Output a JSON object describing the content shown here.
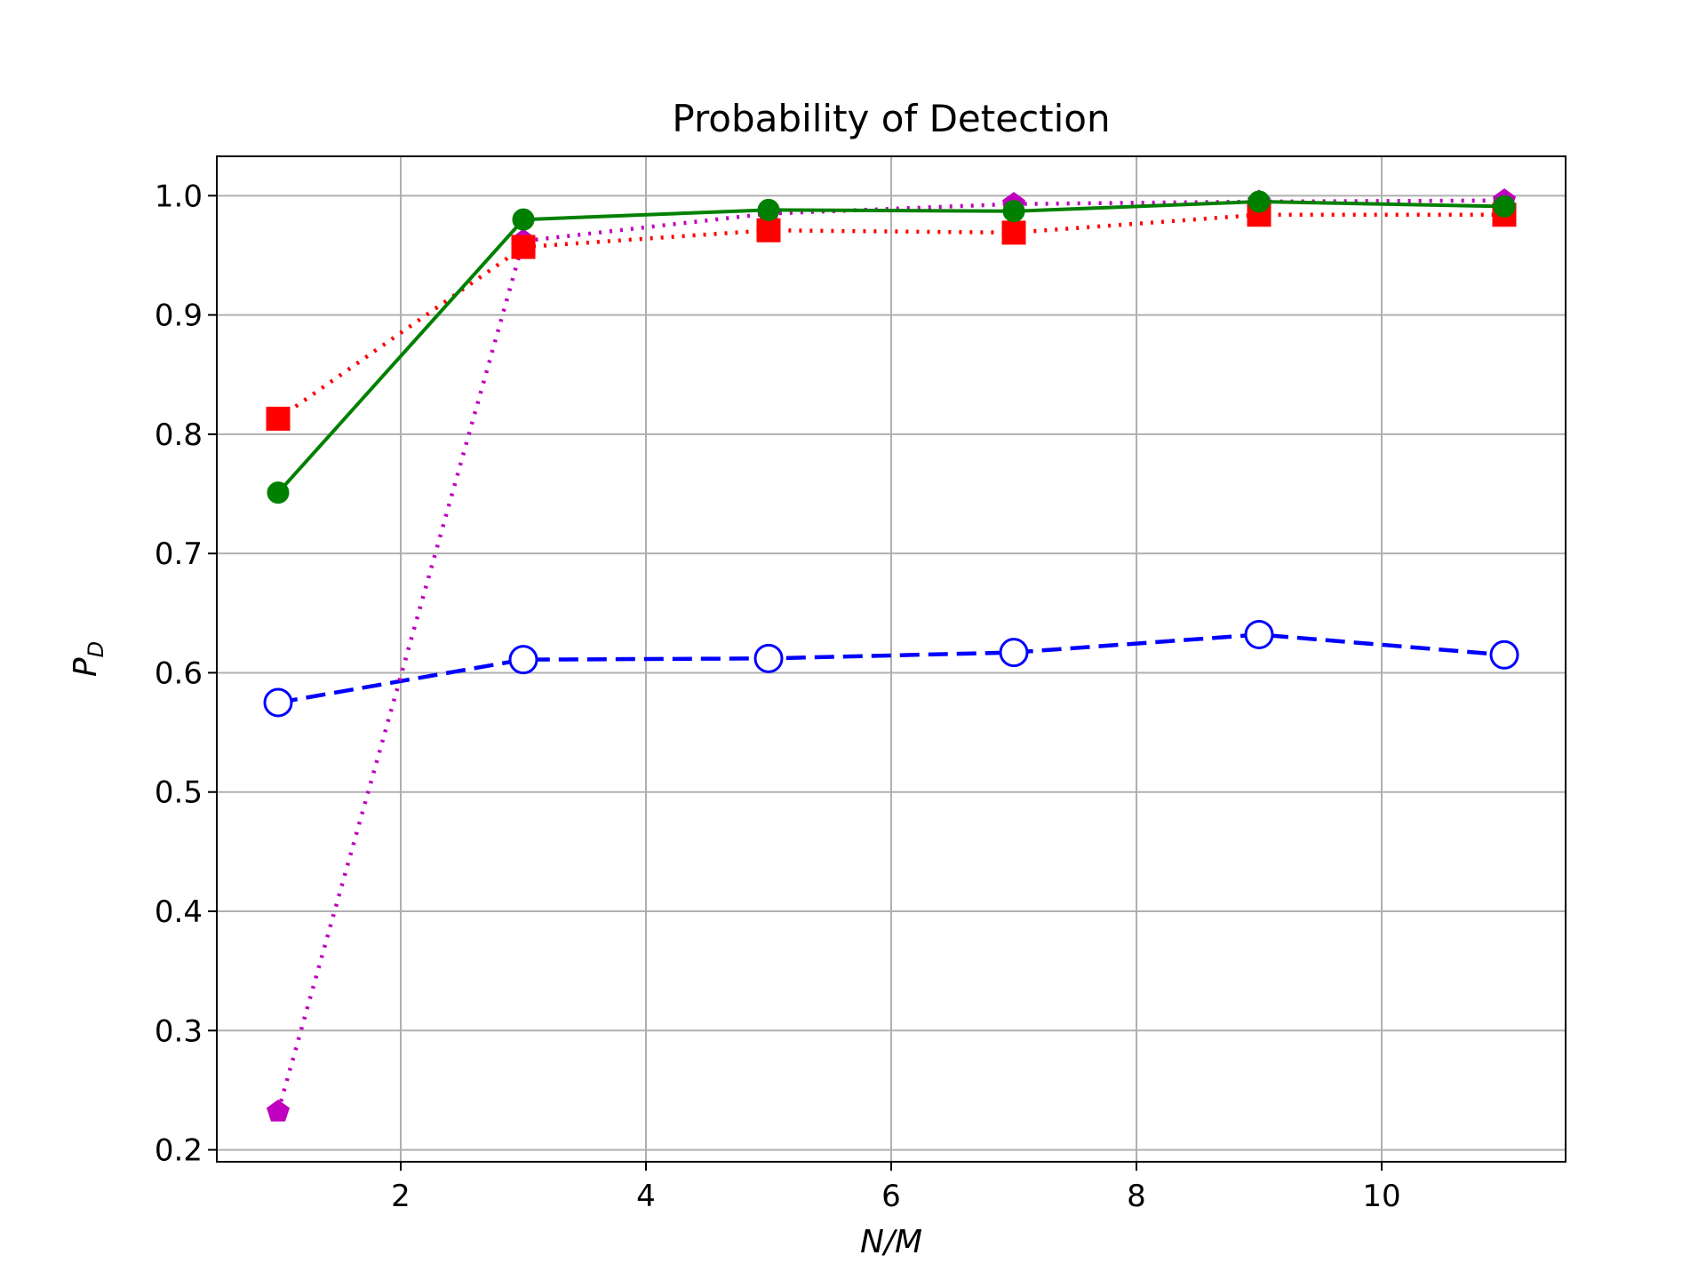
{
  "chart_data": {
    "type": "line",
    "title": "Probability of Detection",
    "xlabel": "N/M",
    "ylabel": "P",
    "ylabel_subscript": "D",
    "xlim": [
      0.5,
      11.5
    ],
    "ylim": [
      0.19,
      1.033
    ],
    "grid": true,
    "xticks": [
      2,
      4,
      6,
      8,
      10
    ],
    "xtick_labels": [
      "2",
      "4",
      "6",
      "8",
      "10"
    ],
    "yticks": [
      0.2,
      0.3,
      0.4,
      0.5,
      0.6,
      0.7,
      0.8,
      0.9,
      1.0
    ],
    "ytick_labels": [
      "0.2",
      "0.3",
      "0.4",
      "0.5",
      "0.6",
      "0.7",
      "0.8",
      "0.9",
      "1.0"
    ],
    "x": [
      1,
      3,
      5,
      7,
      9,
      11
    ],
    "series": [
      {
        "values": [
          0.575,
          0.611,
          0.612,
          0.617,
          0.632,
          0.615
        ],
        "color": "#0000ff",
        "line_style": "dashed",
        "marker": "open-circle"
      },
      {
        "values": [
          0.232,
          0.962,
          0.985,
          0.993,
          0.995,
          0.996
        ],
        "color": "#bf00bf",
        "line_style": "dotted",
        "marker": "pentagon"
      },
      {
        "values": [
          0.813,
          0.957,
          0.971,
          0.969,
          0.984,
          0.984
        ],
        "color": "#ff0000",
        "line_style": "dotted",
        "marker": "square"
      },
      {
        "values": [
          0.751,
          0.98,
          0.988,
          0.987,
          0.995,
          0.991
        ],
        "color": "#008000",
        "line_style": "solid",
        "marker": "filled-circle"
      }
    ]
  }
}
